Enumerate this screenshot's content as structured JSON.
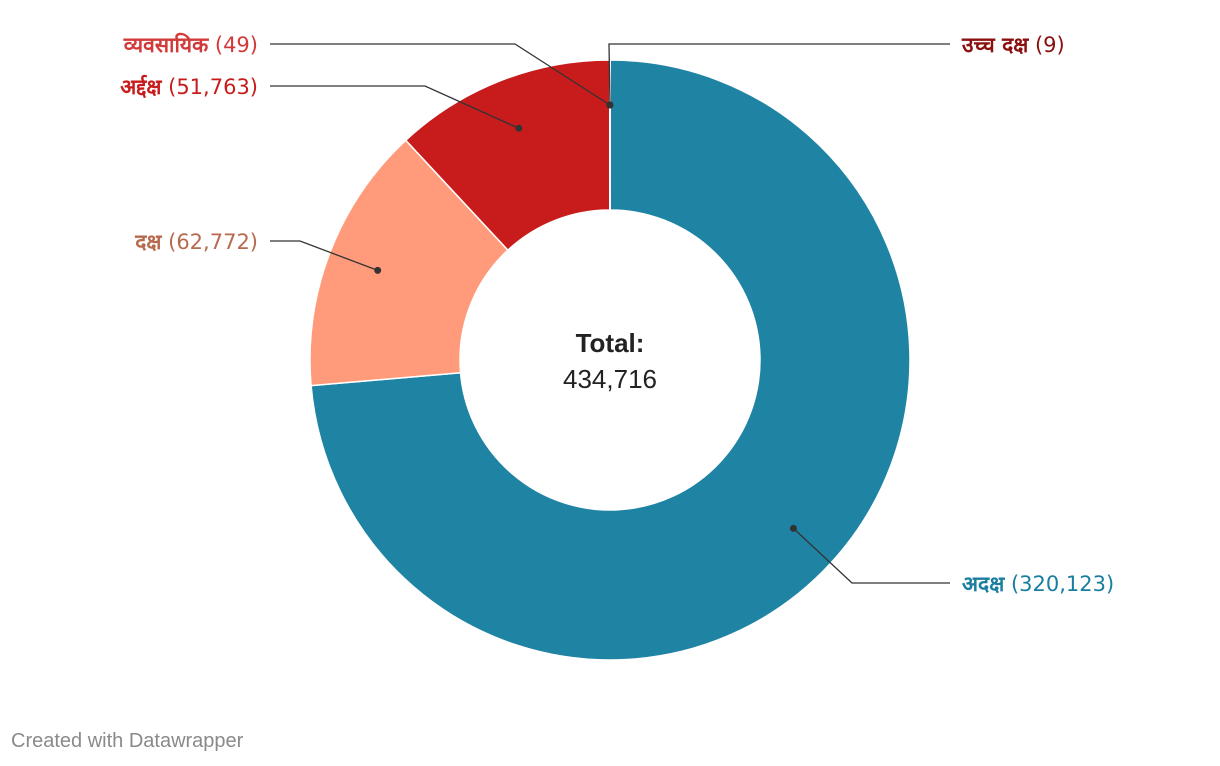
{
  "chart_data": {
    "type": "pie",
    "variant": "donut",
    "categories": [
      "अदक्ष",
      "दक्ष",
      "अर्द्दक्ष",
      "व्यवसायिक",
      "उच्च दक्ष"
    ],
    "values": [
      320123,
      62772,
      51763,
      49,
      9
    ],
    "colors": [
      "#1f83a3",
      "#ff9b7b",
      "#c81c1c",
      "#d23a3a",
      "#8b0f0f"
    ],
    "label_colors": [
      "#1a7ea0",
      "#b86a4e",
      "#c81c1c",
      "#d23a3a",
      "#8b0f0f"
    ],
    "value_labels": [
      "(320,123)",
      "(62,772)",
      "(51,763)",
      "(49)",
      "(9)"
    ],
    "center_title": "Total:",
    "center_value": "434,716",
    "total": 434716
  },
  "footer": {
    "credit": "Created with Datawrapper"
  }
}
